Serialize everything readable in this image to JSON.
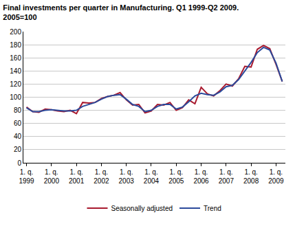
{
  "chart_data": {
    "type": "line",
    "title": "Final investments per quarter in Manufacturing. Q1 1999-Q2 2009. 2005=100",
    "categories": [
      "1. q. 1999",
      null,
      null,
      null,
      "1. q. 2000",
      null,
      null,
      null,
      "1. q. 2001",
      null,
      null,
      null,
      "1. q. 2002",
      null,
      null,
      null,
      "1. q. 2003",
      null,
      null,
      null,
      "1. q. 2004",
      null,
      null,
      null,
      "1. q. 2005",
      null,
      null,
      null,
      "1. q. 2006",
      null,
      null,
      null,
      "1. q. 2007",
      null,
      null,
      null,
      "1. q. 2008",
      null,
      null,
      null,
      "1. q. 2009",
      null
    ],
    "series": [
      {
        "name": "Seasonally adjusted",
        "color": "#a8192e",
        "values": [
          85,
          78,
          77,
          82,
          81,
          79,
          78,
          80,
          75,
          92,
          91,
          92,
          98,
          101,
          103,
          107,
          96,
          88,
          89,
          76,
          79,
          89,
          88,
          92,
          80,
          84,
          96,
          90,
          115,
          105,
          102,
          110,
          120,
          117,
          128,
          147,
          146,
          173,
          179,
          174,
          150,
          124
        ]
      },
      {
        "name": "Trend",
        "color": "#2b4a9b",
        "values": [
          84,
          78,
          78,
          80,
          81,
          80,
          79,
          79,
          80,
          86,
          89,
          92,
          97,
          101,
          103,
          104,
          97,
          89,
          86,
          78,
          80,
          86,
          89,
          89,
          82,
          85,
          93,
          102,
          106,
          104,
          103,
          108,
          116,
          118,
          127,
          140,
          153,
          168,
          176,
          172,
          152,
          124
        ]
      }
    ],
    "ylim": [
      0,
      200
    ],
    "yticks": [
      0,
      20,
      40,
      60,
      80,
      100,
      120,
      140,
      160,
      180,
      200
    ],
    "grid": true,
    "legend": "bottom"
  }
}
